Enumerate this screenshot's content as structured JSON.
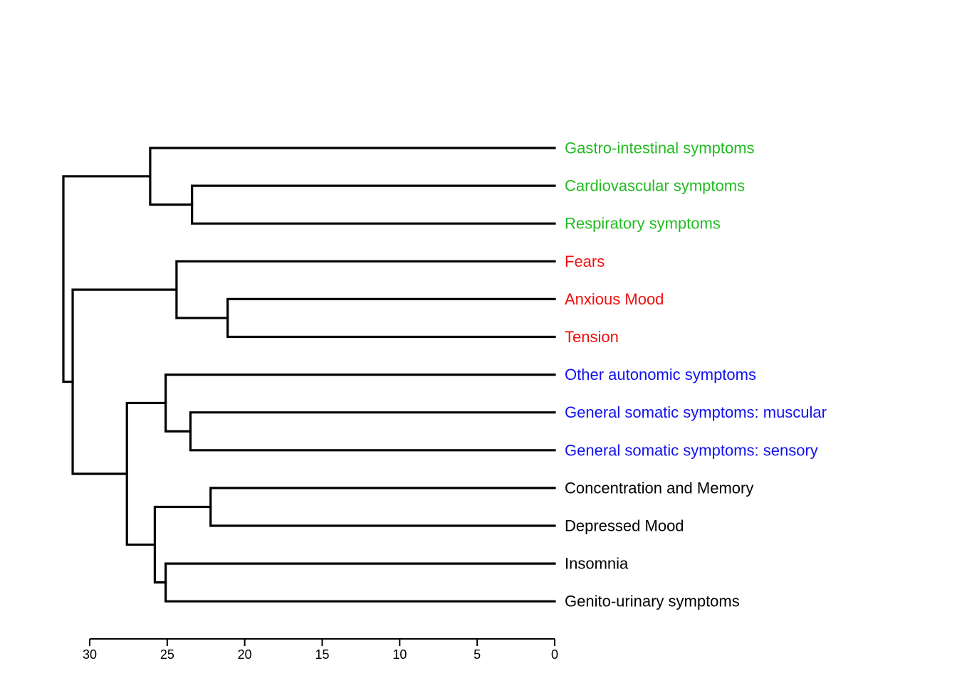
{
  "chart_data": {
    "type": "dendrogram",
    "orientation": "horizontal",
    "leaves": [
      {
        "label": "Gastro-intestinal symptoms",
        "color": "#22bb22"
      },
      {
        "label": "Cardiovascular symptoms",
        "color": "#22bb22"
      },
      {
        "label": "Respiratory symptoms",
        "color": "#22bb22"
      },
      {
        "label": "Fears",
        "color": "#ee1111"
      },
      {
        "label": "Anxious Mood",
        "color": "#ee1111"
      },
      {
        "label": "Tension",
        "color": "#ee1111"
      },
      {
        "label": "Other autonomic symptoms",
        "color": "#1111ee"
      },
      {
        "label": "General somatic symptoms: muscular",
        "color": "#1111ee"
      },
      {
        "label": "General somatic symptoms: sensory",
        "color": "#1111ee"
      },
      {
        "label": "Concentration and Memory",
        "color": "#000000"
      },
      {
        "label": "Depressed Mood",
        "color": "#000000"
      },
      {
        "label": "Insomnia",
        "color": "#000000"
      },
      {
        "label": "Genito-urinary symptoms",
        "color": "#000000"
      }
    ],
    "merges": [
      {
        "id": "m1",
        "children": [
          "L1",
          "L2"
        ],
        "height": 23.4
      },
      {
        "id": "m2",
        "children": [
          "L0",
          "m1"
        ],
        "height": 26.1
      },
      {
        "id": "m3",
        "children": [
          "L4",
          "L5"
        ],
        "height": 21.1
      },
      {
        "id": "m4",
        "children": [
          "L3",
          "m3"
        ],
        "height": 24.4
      },
      {
        "id": "m5",
        "children": [
          "L7",
          "L8"
        ],
        "height": 23.5
      },
      {
        "id": "m6",
        "children": [
          "L6",
          "m5"
        ],
        "height": 25.1
      },
      {
        "id": "m7",
        "children": [
          "L9",
          "L10"
        ],
        "height": 22.2
      },
      {
        "id": "m8",
        "children": [
          "L11",
          "L12"
        ],
        "height": 25.1
      },
      {
        "id": "m9",
        "children": [
          "m7",
          "m8"
        ],
        "height": 25.8
      },
      {
        "id": "m10",
        "children": [
          "m6",
          "m9"
        ],
        "height": 27.6
      },
      {
        "id": "m11",
        "children": [
          "m4",
          "m10"
        ],
        "height": 31.1
      },
      {
        "id": "m12",
        "children": [
          "m2",
          "m11"
        ],
        "height": 31.7
      }
    ],
    "x_ticks": [
      30,
      25,
      20,
      15,
      10,
      5,
      0
    ],
    "x_range": [
      30,
      0
    ],
    "line_color": "#000000"
  }
}
